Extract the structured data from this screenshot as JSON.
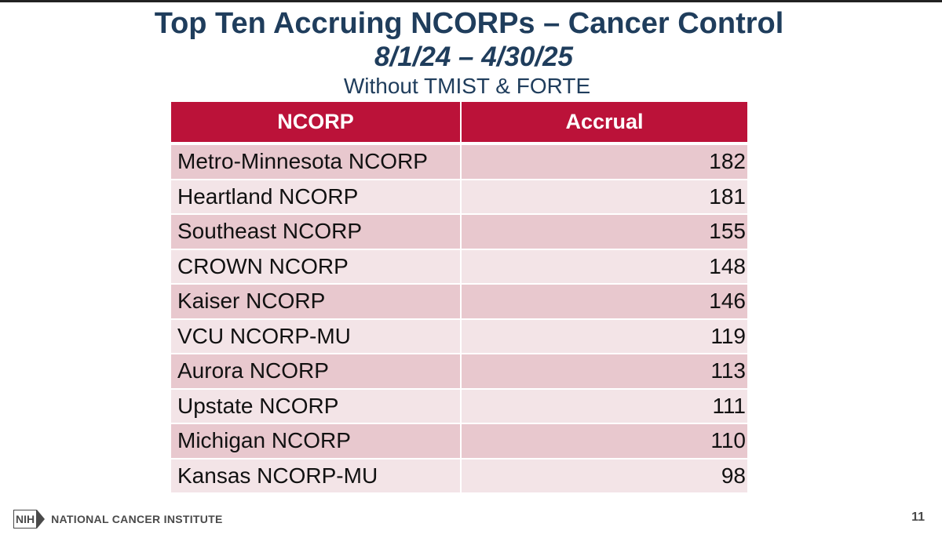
{
  "slide": {
    "title": "Top Ten Accruing NCORPs – Cancer Control",
    "date_range": "8/1/24 – 4/30/25",
    "subtitle": "Without TMIST & FORTE",
    "page_number": "11"
  },
  "table": {
    "headers": [
      "NCORP",
      "Accrual"
    ],
    "rows": [
      {
        "name": "Metro-Minnesota NCORP",
        "accrual": "182"
      },
      {
        "name": "Heartland NCORP",
        "accrual": "181"
      },
      {
        "name": "Southeast NCORP",
        "accrual": "155"
      },
      {
        "name": "CROWN NCORP",
        "accrual": "148"
      },
      {
        "name": "Kaiser NCORP",
        "accrual": "146"
      },
      {
        "name": "VCU NCORP-MU",
        "accrual": "119"
      },
      {
        "name": "Aurora NCORP",
        "accrual": "113"
      },
      {
        "name": "Upstate NCORP",
        "accrual": "111"
      },
      {
        "name": "Michigan NCORP",
        "accrual": "110"
      },
      {
        "name": "Kansas NCORP-MU",
        "accrual": "98"
      }
    ]
  },
  "footer": {
    "logo_badge": "NIH",
    "logo_text": "NATIONAL CANCER INSTITUTE",
    "logo_icon": "nih-logo-icon"
  },
  "colors": {
    "title": "#1f3d5c",
    "header_bg": "#bb1239",
    "row_odd": "#e8c8ce",
    "row_even": "#f3e4e7"
  }
}
